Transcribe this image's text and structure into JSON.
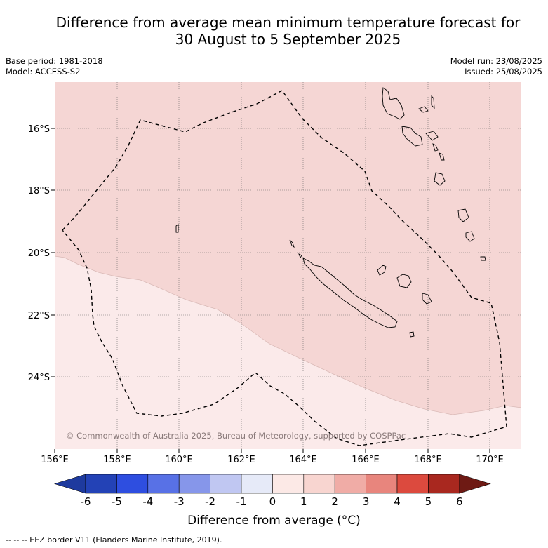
{
  "title": {
    "line1": "Difference from average mean minimum temperature forecast for",
    "line2": "30 August to 5 September 2025"
  },
  "meta": {
    "base_period": "Base period: 1981-2018",
    "model": "Model: ACCESS-S2",
    "model_run": "Model run: 23/08/2025",
    "issued": "Issued: 25/08/2025"
  },
  "map": {
    "lon_labels": [
      "156°E",
      "158°E",
      "160°E",
      "162°E",
      "164°E",
      "166°E",
      "168°E",
      "170°E"
    ],
    "lat_labels": [
      "16°S",
      "18°S",
      "20°S",
      "22°S",
      "24°S"
    ],
    "copyright": "© Commonwealth of Australia 2025, Bureau of Meteorology, supported by COSPPac",
    "regions": [
      {
        "category": "1 to 2",
        "color": "#f5d6d4"
      },
      {
        "category": "0 to 1",
        "color": "#fbeaea"
      }
    ],
    "eez_style": "dashed black"
  },
  "colorbar": {
    "title": "Difference from average (°C)",
    "ticks": [
      "-6",
      "-5",
      "-4",
      "-3",
      "-2",
      "-1",
      "0",
      "1",
      "2",
      "3",
      "4",
      "5",
      "6"
    ],
    "colors": [
      "#1e3a9e",
      "#2342b6",
      "#2e4ee0",
      "#5871e6",
      "#8696ea",
      "#c0c7f2",
      "#e6eaf8",
      "#fce9e6",
      "#f8d5d0",
      "#f0aca6",
      "#e8857d",
      "#dc4a3e",
      "#a9281f",
      "#6e1a14"
    ]
  },
  "footer": "--  --  -- EEZ border V11 (Flanders Marine Institute, 2019)."
}
